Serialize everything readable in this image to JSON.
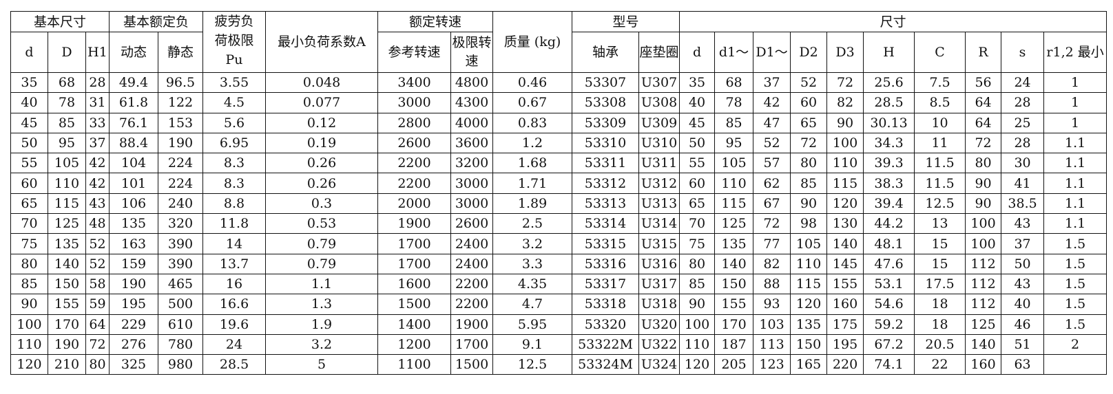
{
  "header": {
    "groups": {
      "basic_size": "基本尺寸",
      "basic_load": "基本额定负",
      "fatigue": "疲劳负荷极限Pu",
      "min_load": "最小负荷系数A",
      "speed": "额定转速",
      "mass": "质量 (kg)",
      "model": "型号",
      "dims": "尺寸"
    },
    "fatigue_line1": "疲劳负",
    "fatigue_line2": "荷极限",
    "fatigue_line3": "Pu",
    "cols": [
      "d",
      "D",
      "H1",
      "动态",
      "静态",
      "参考转速",
      "极限转速",
      "轴承",
      "座垫圈",
      "d",
      "d1～",
      "D1～",
      "D2",
      "D3",
      "H",
      "C",
      "R",
      "s",
      "r1,2 最小"
    ]
  },
  "rows": [
    [
      "35",
      "68",
      "28",
      "49.4",
      "96.5",
      "3.55",
      "0.048",
      "3400",
      "4800",
      "0.46",
      "53307",
      "U307",
      "35",
      "68",
      "37",
      "52",
      "72",
      "25.6",
      "7.5",
      "56",
      "24",
      "1"
    ],
    [
      "40",
      "78",
      "31",
      "61.8",
      "122",
      "4.5",
      "0.077",
      "3000",
      "4300",
      "0.67",
      "53308",
      "U308",
      "40",
      "78",
      "42",
      "60",
      "82",
      "28.5",
      "8.5",
      "64",
      "28",
      "1"
    ],
    [
      "45",
      "85",
      "33",
      "76.1",
      "153",
      "5.6",
      "0.12",
      "2800",
      "4000",
      "0.83",
      "53309",
      "U309",
      "45",
      "85",
      "47",
      "65",
      "90",
      "30.13",
      "10",
      "64",
      "25",
      "1"
    ],
    [
      "50",
      "95",
      "37",
      "88.4",
      "190",
      "6.95",
      "0.19",
      "2600",
      "3600",
      "1.2",
      "53310",
      "U310",
      "50",
      "95",
      "52",
      "72",
      "100",
      "34.3",
      "11",
      "72",
      "28",
      "1.1"
    ],
    [
      "55",
      "105",
      "42",
      "104",
      "224",
      "8.3",
      "0.26",
      "2200",
      "3200",
      "1.68",
      "53311",
      "U311",
      "55",
      "105",
      "57",
      "80",
      "110",
      "39.3",
      "11.5",
      "80",
      "30",
      "1.1"
    ],
    [
      "60",
      "110",
      "42",
      "101",
      "224",
      "8.3",
      "0.26",
      "2200",
      "3000",
      "1.71",
      "53312",
      "U312",
      "60",
      "110",
      "62",
      "85",
      "115",
      "38.3",
      "11.5",
      "90",
      "41",
      "1.1"
    ],
    [
      "65",
      "115",
      "43",
      "106",
      "240",
      "8.8",
      "0.3",
      "2000",
      "3000",
      "1.89",
      "53313",
      "U313",
      "65",
      "115",
      "67",
      "90",
      "120",
      "39.4",
      "12.5",
      "90",
      "38.5",
      "1.1"
    ],
    [
      "70",
      "125",
      "48",
      "135",
      "320",
      "11.8",
      "0.53",
      "1900",
      "2600",
      "2.5",
      "53314",
      "U314",
      "70",
      "125",
      "72",
      "98",
      "130",
      "44.2",
      "13",
      "100",
      "43",
      "1.1"
    ],
    [
      "75",
      "135",
      "52",
      "163",
      "390",
      "14",
      "0.79",
      "1700",
      "2400",
      "3.2",
      "53315",
      "U315",
      "75",
      "135",
      "77",
      "105",
      "140",
      "48.1",
      "15",
      "100",
      "37",
      "1.5"
    ],
    [
      "80",
      "140",
      "52",
      "159",
      "390",
      "13.7",
      "0.79",
      "1700",
      "2400",
      "3.3",
      "53316",
      "U316",
      "80",
      "140",
      "82",
      "110",
      "145",
      "47.6",
      "15",
      "112",
      "50",
      "1.5"
    ],
    [
      "85",
      "150",
      "58",
      "190",
      "465",
      "16",
      "1.1",
      "1600",
      "2200",
      "4.35",
      "53317",
      "U317",
      "85",
      "150",
      "88",
      "115",
      "155",
      "53.1",
      "17.5",
      "112",
      "43",
      "1.5"
    ],
    [
      "90",
      "155",
      "59",
      "195",
      "500",
      "16.6",
      "1.3",
      "1500",
      "2200",
      "4.7",
      "53318",
      "U318",
      "90",
      "155",
      "93",
      "120",
      "160",
      "54.6",
      "18",
      "112",
      "40",
      "1.5"
    ],
    [
      "100",
      "170",
      "64",
      "229",
      "610",
      "19.6",
      "1.9",
      "1400",
      "1900",
      "5.95",
      "53320",
      "U320",
      "100",
      "170",
      "103",
      "135",
      "175",
      "59.2",
      "18",
      "125",
      "46",
      "1.5"
    ],
    [
      "110",
      "190",
      "72",
      "276",
      "780",
      "24",
      "3.2",
      "1200",
      "1700",
      "9.1",
      "53322M",
      "U322",
      "110",
      "187",
      "113",
      "150",
      "195",
      "67.2",
      "20.5",
      "140",
      "51",
      "2"
    ],
    [
      "120",
      "210",
      "80",
      "325",
      "980",
      "28.5",
      "5",
      "1100",
      "1500",
      "12.5",
      "53324M",
      "U324",
      "120",
      "205",
      "123",
      "165",
      "220",
      "74.1",
      "22",
      "160",
      "63",
      ""
    ]
  ]
}
